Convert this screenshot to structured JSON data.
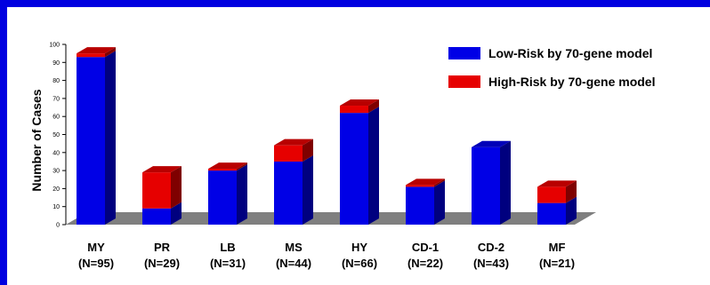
{
  "chart_data": {
    "type": "bar",
    "stacked": true,
    "three_d": true,
    "categories": [
      "MY",
      "PR",
      "LB",
      "MS",
      "HY",
      "CD-1",
      "CD-2",
      "MF"
    ],
    "category_counts": [
      "(N=95)",
      "(N=29)",
      "(N=31)",
      "(N=44)",
      "(N=66)",
      "(N=22)",
      "(N=43)",
      "(N=21)"
    ],
    "series": [
      {
        "name": "Low-Risk by 70-gene model",
        "color": "#0000e6",
        "values": [
          93,
          9,
          30,
          35,
          62,
          21,
          43,
          12
        ]
      },
      {
        "name": "High-Risk by 70-gene model",
        "color": "#e60000",
        "values": [
          2,
          20,
          1,
          9,
          4,
          1,
          0,
          9
        ]
      }
    ],
    "ylabel": "Number of Cases",
    "xlabel": "",
    "ylim": [
      0,
      100
    ],
    "yticks": [
      0,
      10,
      20,
      30,
      40,
      50,
      60,
      70,
      80,
      90,
      100
    ],
    "legend_position": "top-right",
    "grid": false,
    "floor_color": "#7f7f7f"
  }
}
